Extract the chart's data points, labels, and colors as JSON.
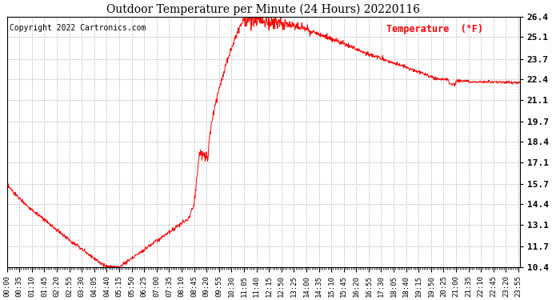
{
  "title": "Outdoor Temperature per Minute (24 Hours) 20220116",
  "copyright_text": "Copyright 2022 Cartronics.com",
  "legend_label": "Temperature  (°F)",
  "line_color": "red",
  "background_color": "white",
  "grid_color": "#bbbbbb",
  "yticks": [
    10.4,
    11.7,
    13.1,
    14.4,
    15.7,
    17.1,
    18.4,
    19.7,
    21.1,
    22.4,
    23.7,
    25.1,
    26.4
  ],
  "ymin": 10.4,
  "ymax": 26.4,
  "total_minutes": 1440,
  "xtick_interval": 35
}
